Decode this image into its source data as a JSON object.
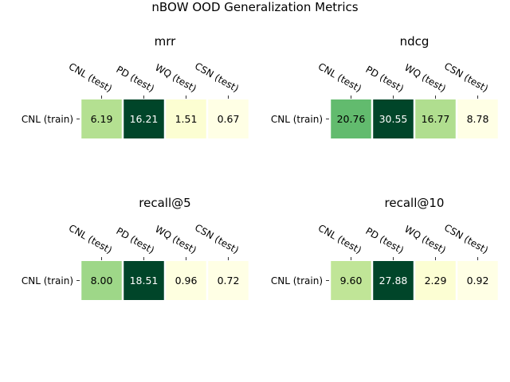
{
  "chart_data": {
    "type": "heatmap",
    "title": "nBOW OOD Generalization Metrics",
    "colormap": "YlGn",
    "colors": [
      "#ffffe5",
      "#f7fcb9",
      "#d9f0a3",
      "#addd8e",
      "#78c679",
      "#41ab5d",
      "#238443",
      "#006837",
      "#004529"
    ],
    "subplots": [
      {
        "title": "mrr",
        "rows": [
          "CNL (train)"
        ],
        "columns": [
          "CNL (test)",
          "PD (test)",
          "WQ (test)",
          "CSN (test)"
        ],
        "values": [
          [
            6.19,
            16.21,
            1.51,
            0.67
          ]
        ],
        "labels": [
          "6.19",
          "16.21",
          "1.51",
          "0.67"
        ]
      },
      {
        "title": "ndcg",
        "rows": [
          "CNL (train)"
        ],
        "columns": [
          "CNL (test)",
          "PD (test)",
          "WQ (test)",
          "CSN (test)"
        ],
        "values": [
          [
            20.76,
            30.55,
            16.77,
            8.78
          ]
        ],
        "labels": [
          "20.76",
          "30.55",
          "16.77",
          "8.78"
        ]
      },
      {
        "title": "recall@5",
        "rows": [
          "CNL (train)"
        ],
        "columns": [
          "CNL (test)",
          "PD (test)",
          "WQ (test)",
          "CSN (test)"
        ],
        "values": [
          [
            8.0,
            18.51,
            0.96,
            0.72
          ]
        ],
        "labels": [
          "8.00",
          "18.51",
          "0.96",
          "0.72"
        ]
      },
      {
        "title": "recall@10",
        "rows": [
          "CNL (train)"
        ],
        "columns": [
          "CNL (test)",
          "PD (test)",
          "WQ (test)",
          "CSN (test)"
        ],
        "values": [
          [
            9.6,
            27.88,
            2.29,
            0.92
          ]
        ],
        "labels": [
          "9.60",
          "27.88",
          "2.29",
          "0.92"
        ]
      }
    ]
  }
}
